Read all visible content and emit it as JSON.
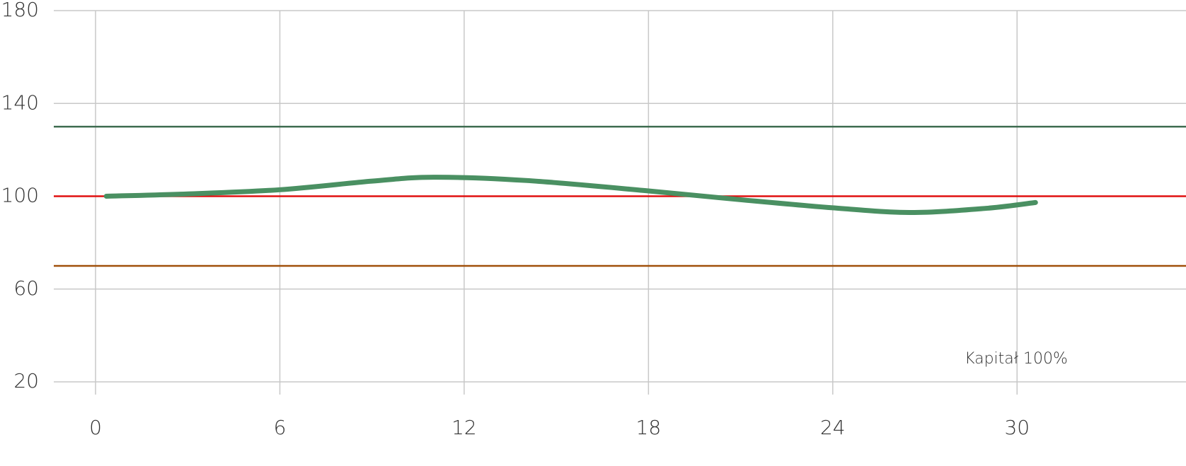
{
  "chart_data": {
    "type": "line",
    "x": [
      0.35,
      3,
      6,
      9,
      11,
      14,
      18,
      21,
      24,
      26.5,
      29,
      30.6
    ],
    "series": [
      {
        "color": "#4a9062",
        "values": [
          100,
          101,
          102.8,
          106.5,
          108.2,
          106.8,
          102.3,
          98.5,
          95,
          93,
          94.8,
          97.3
        ]
      }
    ],
    "xlim": [
      -1.36,
      35.5
    ],
    "xticks": [
      0,
      6,
      12,
      18,
      24,
      30
    ],
    "ylim": [
      20,
      180
    ],
    "yticks": [
      20,
      60,
      100,
      140,
      180
    ],
    "grid": true,
    "reference_lines": [
      {
        "value": 130,
        "color": "#3d6b4f"
      },
      {
        "value": 100,
        "color": "#e01010"
      },
      {
        "value": 70,
        "color": "#a0500a"
      }
    ],
    "annotation": "Kapitał 100%"
  }
}
